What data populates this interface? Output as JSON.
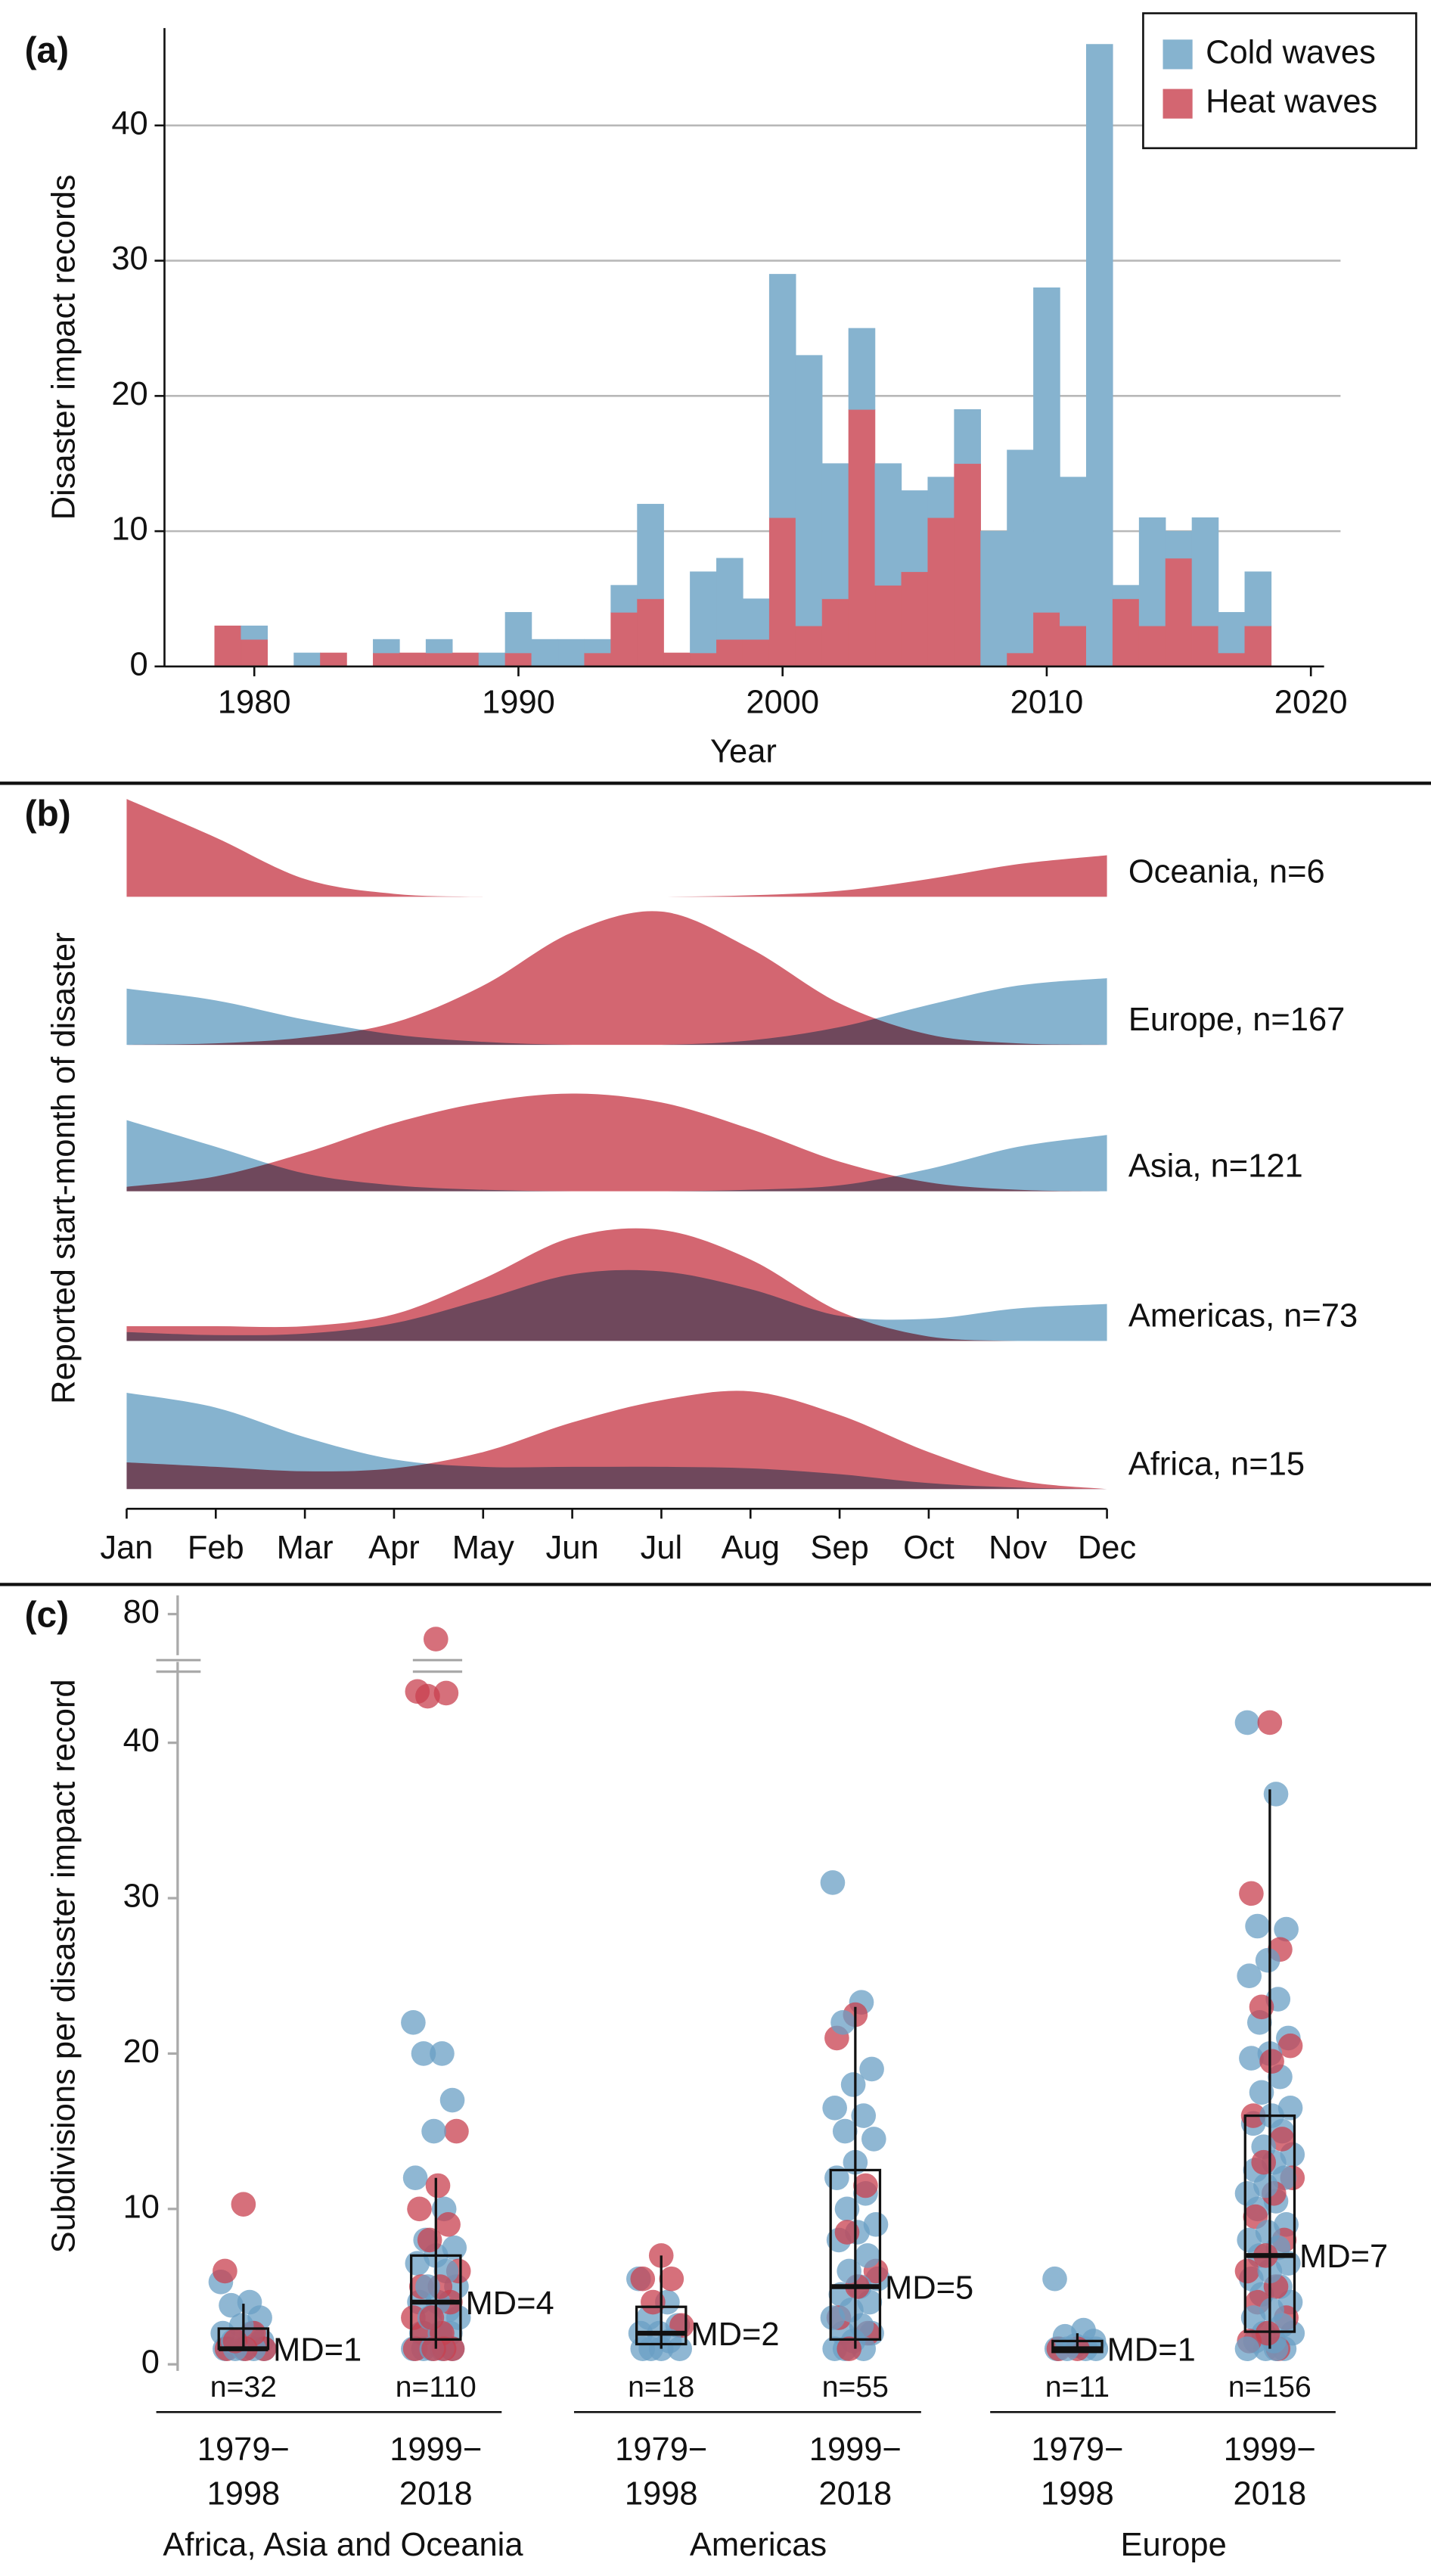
{
  "chart_data": [
    {
      "type": "bar",
      "panel_label": "(a)",
      "x_label": "Year",
      "y_label": "Disaster impact records",
      "x": [
        1979,
        1980,
        1981,
        1982,
        1983,
        1984,
        1985,
        1986,
        1987,
        1988,
        1989,
        1990,
        1991,
        1992,
        1993,
        1994,
        1995,
        1996,
        1997,
        1998,
        1999,
        2000,
        2001,
        2002,
        2003,
        2004,
        2005,
        2006,
        2007,
        2008,
        2009,
        2010,
        2011,
        2012,
        2013,
        2014,
        2015,
        2016,
        2017,
        2018
      ],
      "series": [
        {
          "name": "Cold waves",
          "color": "#86b3cf",
          "values": [
            0,
            1,
            0,
            1,
            0,
            0,
            1,
            0,
            1,
            0,
            1,
            3,
            2,
            2,
            1,
            2,
            7,
            0,
            6,
            6,
            3,
            18,
            20,
            10,
            6,
            9,
            6,
            3,
            4,
            10,
            15,
            24,
            11,
            46,
            1,
            8,
            2,
            8,
            3,
            4
          ]
        },
        {
          "name": "Heat waves",
          "color": "#d36671",
          "values": [
            3,
            2,
            0,
            0,
            1,
            0,
            1,
            1,
            1,
            1,
            0,
            1,
            0,
            0,
            1,
            4,
            5,
            1,
            1,
            2,
            2,
            11,
            3,
            5,
            19,
            6,
            7,
            11,
            15,
            0,
            1,
            4,
            3,
            0,
            5,
            3,
            8,
            3,
            1,
            3
          ]
        }
      ],
      "stacked": true,
      "xlim": [
        1976.6,
        2020.5
      ],
      "xticks": [
        1980,
        1990,
        2000,
        2010,
        2020
      ],
      "ylim": [
        0,
        47.2
      ],
      "yticks": [
        0,
        10,
        20,
        30,
        40
      ],
      "grid": true,
      "legend": "upper right"
    },
    {
      "type": "ridgeline",
      "panel_label": "(b)",
      "y_label": "Reported start-month of disaster",
      "categories": [
        "Jan",
        "Feb",
        "Mar",
        "Apr",
        "May",
        "Jun",
        "Jul",
        "Aug",
        "Sep",
        "Oct",
        "Nov",
        "Dec"
      ],
      "colors": {
        "cold": "#86b3cf",
        "heat": "#d36671"
      },
      "rows": [
        {
          "label": "Oceania, n=6",
          "heat": [
            0.66,
            0.4,
            0.12,
            0.02,
            0,
            0,
            0,
            0.01,
            0.04,
            0.12,
            0.22,
            0.28
          ]
        },
        {
          "label": "Europe, n=167",
          "cold": [
            0.38,
            0.3,
            0.17,
            0.07,
            0.02,
            0,
            0,
            0.03,
            0.12,
            0.27,
            0.4,
            0.45
          ],
          "heat": [
            0,
            0.01,
            0.05,
            0.15,
            0.4,
            0.76,
            0.9,
            0.65,
            0.28,
            0.07,
            0.01,
            0
          ]
        },
        {
          "label": "Asia, n=121",
          "cold": [
            0.48,
            0.3,
            0.12,
            0.04,
            0.01,
            0,
            0,
            0.01,
            0.04,
            0.15,
            0.3,
            0.38
          ],
          "heat": [
            0.03,
            0.1,
            0.26,
            0.46,
            0.6,
            0.66,
            0.6,
            0.42,
            0.2,
            0.06,
            0.01,
            0
          ]
        },
        {
          "label": "Americas, n=73",
          "cold": [
            0.06,
            0.04,
            0.05,
            0.12,
            0.28,
            0.45,
            0.47,
            0.35,
            0.17,
            0.15,
            0.22,
            0.25
          ],
          "heat": [
            0.1,
            0.1,
            0.1,
            0.18,
            0.42,
            0.7,
            0.75,
            0.55,
            0.2,
            0.03,
            0,
            0
          ]
        },
        {
          "label": "Africa, n=15",
          "cold": [
            0.65,
            0.55,
            0.35,
            0.2,
            0.15,
            0.15,
            0.15,
            0.14,
            0.1,
            0.04,
            0.01,
            0
          ],
          "heat": [
            0.18,
            0.15,
            0.12,
            0.14,
            0.25,
            0.45,
            0.6,
            0.66,
            0.5,
            0.25,
            0.06,
            0
          ]
        }
      ]
    },
    {
      "type": "box_strip",
      "panel_label": "(c)",
      "y_label": "Subdivisions per disaster impact record",
      "ylim": [
        0,
        83
      ],
      "y_break": [
        45,
        75
      ],
      "yticks": [
        0,
        10,
        20,
        30,
        40,
        80
      ],
      "colors": {
        "cold": "#6a9fc4",
        "heat": "#c8404f"
      },
      "regions": [
        {
          "label": "Africa, Asia and Oceania",
          "groups": [
            {
              "period": [
                "1979−",
                "1998"
              ],
              "n_label": "n=32",
              "md_label": "MD=1",
              "box": {
                "whisker_low": 1,
                "q1": 1,
                "median": 1,
                "q3": 2.3,
                "whisker_high": 3.9
              },
              "cold": [
                5.3,
                4,
                3.8,
                3,
                2.5,
                2,
                2,
                1.5,
                1.5,
                1,
                1,
                1,
                1,
                1
              ],
              "heat": [
                10.3,
                6,
                2,
                1.5,
                1,
                1,
                1
              ]
            },
            {
              "period": [
                "1999−",
                "2018"
              ],
              "n_label": "n=110",
              "md_label": "MD=4",
              "box": {
                "whisker_low": 1,
                "q1": 1.6,
                "median": 4,
                "q3": 7,
                "whisker_high": 12
              },
              "cold": [
                22,
                20,
                20,
                17,
                15,
                12,
                10,
                8,
                7.5,
                7,
                6.5,
                6,
                5,
                5,
                4,
                4,
                3.5,
                3,
                3,
                2,
                2,
                2,
                1,
                1,
                1,
                1,
                1
              ],
              "heat": [
                76,
                43.3,
                43.2,
                43,
                15,
                11.5,
                10,
                9,
                8,
                6,
                5,
                5,
                4,
                3,
                3,
                2,
                2,
                1,
                1,
                1,
                1
              ]
            }
          ]
        },
        {
          "label": "Americas",
          "groups": [
            {
              "period": [
                "1979−",
                "1998"
              ],
              "n_label": "n=18",
              "md_label": "MD=2",
              "box": {
                "whisker_low": 1,
                "q1": 1.3,
                "median": 2,
                "q3": 3.7,
                "whisker_high": 7
              },
              "cold": [
                5.5,
                4,
                3,
                2.5,
                2,
                2,
                1.5,
                1,
                1,
                1,
                1
              ],
              "heat": [
                7,
                5.5,
                5.5,
                4,
                2.5
              ]
            },
            {
              "period": [
                "1999−",
                "2018"
              ],
              "n_label": "n=55",
              "md_label": "MD=5",
              "box": {
                "whisker_low": 1,
                "q1": 1.6,
                "median": 5,
                "q3": 12.5,
                "whisker_high": 23
              },
              "cold": [
                31,
                23.3,
                22,
                19,
                18,
                16.5,
                16,
                15,
                14.5,
                13,
                12,
                11,
                10,
                9,
                8.5,
                8,
                7,
                6,
                5.5,
                5,
                4.5,
                4,
                3.5,
                3,
                2.5,
                2,
                2,
                1.5,
                1,
                1,
                1
              ],
              "heat": [
                22.5,
                21,
                11.5,
                8.5,
                6,
                5,
                3,
                2,
                1
              ]
            }
          ]
        },
        {
          "label": "Europe",
          "groups": [
            {
              "period": [
                "1979−",
                "1998"
              ],
              "n_label": "n=11",
              "md_label": "MD=1",
              "box": {
                "whisker_low": 0.8,
                "q1": 0.8,
                "median": 1,
                "q3": 1.5,
                "whisker_high": 2
              },
              "cold": [
                5.5,
                2.2,
                1.8,
                1.5,
                1.2,
                1,
                1,
                1,
                1
              ],
              "heat": [
                1,
                1
              ]
            },
            {
              "period": [
                "1999−",
                "2018"
              ],
              "n_label": "n=156",
              "md_label": "MD=7",
              "box": {
                "whisker_low": 1,
                "q1": 2.1,
                "median": 7,
                "q3": 16,
                "whisker_high": 37
              },
              "cold": [
                41.3,
                36.7,
                28.2,
                28,
                26,
                25,
                23.5,
                22,
                21,
                20,
                19.7,
                18.5,
                17.5,
                16.5,
                16,
                15.5,
                15,
                14,
                13.5,
                13,
                12.5,
                12,
                11.5,
                11,
                10.5,
                10,
                9,
                8.5,
                8,
                7.5,
                7,
                6.5,
                6,
                5.5,
                5,
                4.5,
                4,
                3.5,
                3,
                2.5,
                2,
                2,
                1.5,
                1.5,
                1,
                1,
                1,
                1
              ],
              "heat": [
                41.3,
                30.3,
                26.7,
                23,
                20.5,
                19.5,
                16,
                14.5,
                13,
                12,
                11,
                9.5,
                8,
                7,
                6,
                5,
                4,
                3,
                2,
                1.5,
                1
              ]
            }
          ]
        }
      ]
    }
  ]
}
